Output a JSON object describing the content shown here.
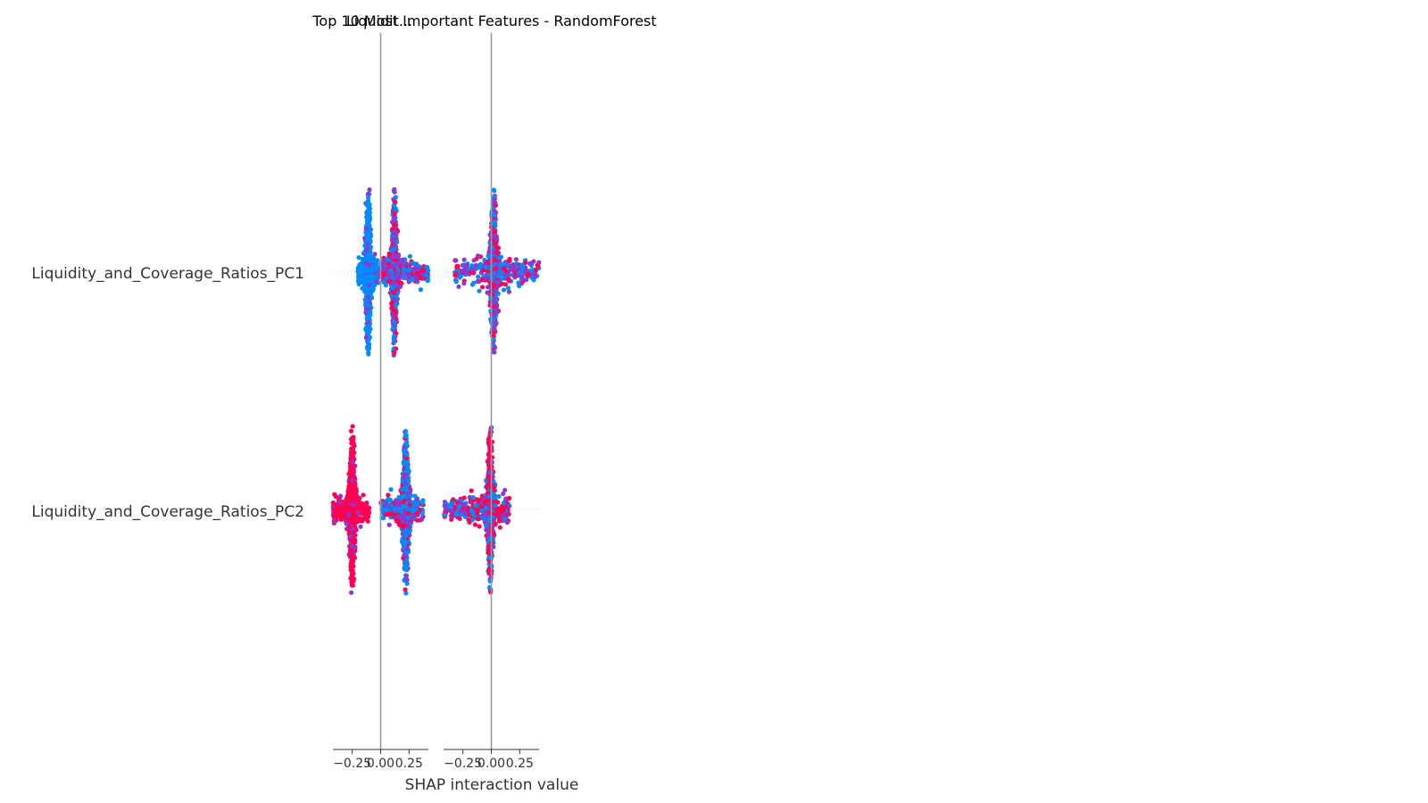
{
  "chart_data": {
    "type": "scatter",
    "subtype": "shap-interaction-beeswarm",
    "titles": [
      "Top 10 Most Important Features - RandomForest",
      "Liquidit..."
    ],
    "features": [
      "Liquidity_and_Coverage_Ratios_PC1",
      "Liquidity_and_Coverage_Ratios_PC2"
    ],
    "xlabel": "SHAP interaction value",
    "panels": [
      {
        "column_feature": "Liquidity_and_Coverage_Ratios_PC1",
        "xlim": [
          -0.42,
          0.42
        ],
        "xticks": [
          -0.25,
          0.0,
          0.25
        ],
        "xtick_labels": [
          "−0.25",
          "0.00",
          "0.25"
        ],
        "clusters": [
          {
            "row": 0,
            "center": -0.11,
            "vspread": 1.0,
            "hspread": 0.03,
            "color": "low",
            "tail": [
              -0.2,
              -0.02
            ]
          },
          {
            "row": 0,
            "center": 0.12,
            "vspread": 0.95,
            "hspread": 0.03,
            "color": "mixed",
            "tail": [
              0.0,
              0.42
            ]
          },
          {
            "row": 1,
            "center": -0.25,
            "vspread": 0.95,
            "hspread": 0.04,
            "color": "high",
            "tail": [
              -0.42,
              -0.1
            ]
          },
          {
            "row": 1,
            "center": 0.22,
            "vspread": 0.95,
            "hspread": 0.04,
            "color": "mixed-low",
            "tail": [
              0.0,
              0.38
            ]
          }
        ]
      },
      {
        "column_feature": "Liquidity_and_Coverage_Ratios_PC2",
        "xlim": [
          -0.42,
          0.42
        ],
        "xticks": [
          -0.25,
          0.0,
          0.25
        ],
        "xtick_labels": [
          "−0.25",
          "0.00",
          "0.25"
        ],
        "clusters": [
          {
            "row": 0,
            "center": 0.02,
            "vspread": 1.0,
            "hspread": 0.05,
            "color": "mixed",
            "tail": [
              -0.32,
              0.42
            ]
          },
          {
            "row": 1,
            "center": -0.01,
            "vspread": 1.0,
            "hspread": 0.04,
            "color": "high-mixed",
            "tail": [
              -0.42,
              0.16
            ]
          }
        ]
      }
    ],
    "colors": {
      "low": "#008bfb",
      "high": "#ff0052",
      "mid": "#8a3ad0",
      "zero_line": "#999999",
      "axis": "#333333"
    }
  }
}
